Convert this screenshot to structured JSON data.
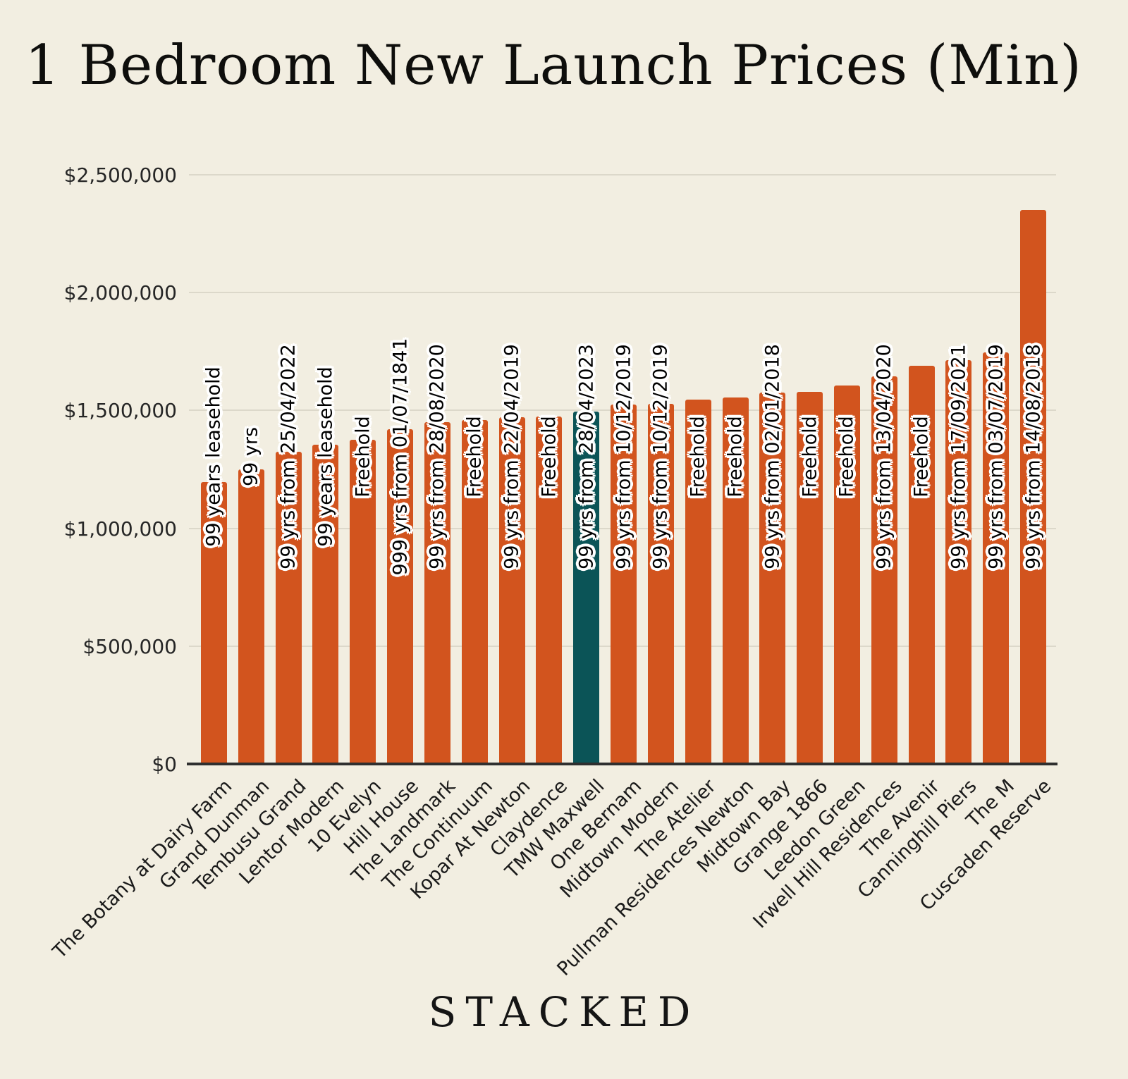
{
  "title": "1 Bedroom New Launch Prices (Min)",
  "brand": "STACKED",
  "colors": {
    "background": "#f2eee1",
    "bar": "#d2541e",
    "highlight_bar": "#0b5457",
    "gridline": "#dcd8ca",
    "axis_line": "#2f2f2f",
    "label_halo": "#ffffff",
    "text": "#1a1a1a"
  },
  "chart_data": {
    "type": "bar",
    "title": "1 Bedroom New Launch Prices (Min)",
    "xlabel": "",
    "ylabel": "",
    "ylim": [
      0,
      2500000
    ],
    "grid": true,
    "legend_position": "none",
    "y_ticks": [
      {
        "value": 0,
        "label": "$0"
      },
      {
        "value": 500000,
        "label": "$500,000"
      },
      {
        "value": 1000000,
        "label": "$1,000,000"
      },
      {
        "value": 1500000,
        "label": "$1,500,000"
      },
      {
        "value": 2000000,
        "label": "$2,000,000"
      },
      {
        "value": 2500000,
        "label": "$2,500,000"
      }
    ],
    "highlight_category": "TMW Maxwell",
    "highlight_index": 10,
    "categories": [
      "The Botany at Dairy Farm",
      "Grand Dunman",
      "Tembusu Grand",
      "Lentor Modern",
      "10 Evelyn",
      "Hill House",
      "The Landmark",
      "The Continuum",
      "Kopar At Newton",
      "Claydence",
      "TMW Maxwell",
      "One Bernam",
      "Midtown Modern",
      "The Atelier",
      "Pullman Residences Newton",
      "Midtown Bay",
      "Grange 1866",
      "Leedon Green",
      "Irwell Hill Residences",
      "The Avenir",
      "Canninghill Piers",
      "The M",
      "Cuscaden Reserve"
    ],
    "values": [
      1195000,
      1250000,
      1325000,
      1355000,
      1375000,
      1420000,
      1450000,
      1460000,
      1470000,
      1473000,
      1495000,
      1525000,
      1528000,
      1545000,
      1555000,
      1575000,
      1580000,
      1605000,
      1645000,
      1690000,
      1715000,
      1748000,
      2350000
    ],
    "bar_labels": [
      "99 years leasehold",
      "99 yrs",
      "99 yrs from 25/04/2022",
      "99 years leasehold",
      "Freehold",
      "999 yrs from 01/07/1841",
      "99 yrs from 28/08/2020",
      "Freehold",
      "99 yrs from 22/04/2019",
      "Freehold",
      "99 yrs from 28/04/2023",
      "99 yrs from 10/12/2019",
      "99 yrs from 10/12/2019",
      "Freehold",
      "Freehold",
      "99 yrs from 02/01/2018",
      "Freehold",
      "Freehold",
      "99 yrs from 13/04/2020",
      "Freehold",
      "99 yrs from 17/09/2021",
      "99 yrs from 03/07/2019",
      "99 yrs from 14/08/2018"
    ]
  }
}
